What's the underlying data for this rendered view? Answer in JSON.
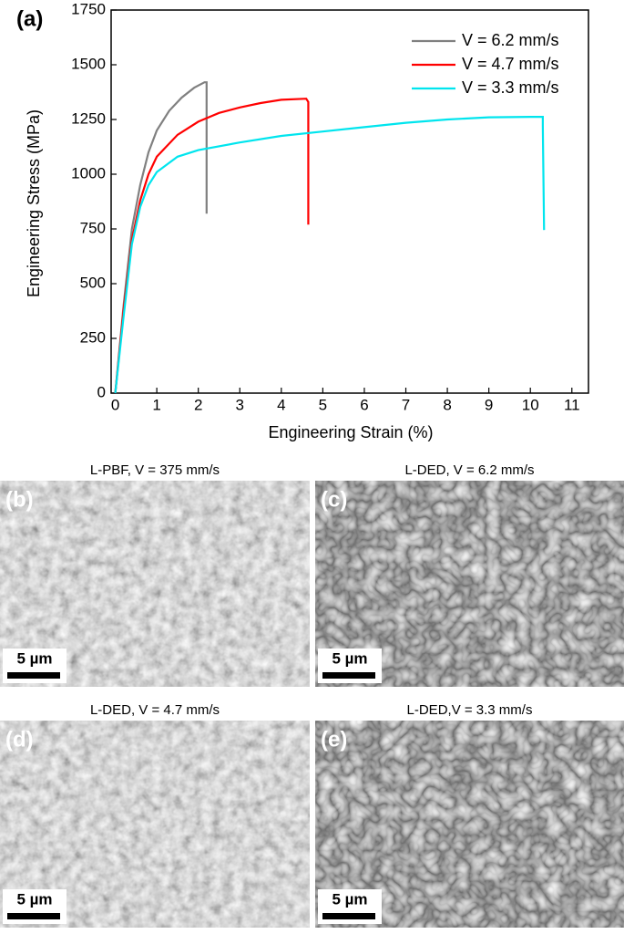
{
  "chart_data": {
    "type": "line",
    "label": "(a)",
    "x_label": "Engineering Strain (%)",
    "y_label": "Engineering Stress (MPa)",
    "xlim": [
      -0.1,
      11.4
    ],
    "ylim": [
      0,
      1750
    ],
    "xticks": [
      0,
      1,
      2,
      3,
      4,
      5,
      6,
      7,
      8,
      9,
      10,
      11
    ],
    "yticks": [
      0,
      250,
      500,
      750,
      1000,
      1250,
      1500,
      1750
    ],
    "legend": "upper right",
    "series": [
      {
        "name": "V = 6.2 mm/s",
        "color": "#808080",
        "x": [
          0,
          0.2,
          0.4,
          0.6,
          0.8,
          1.0,
          1.3,
          1.6,
          1.9,
          2.15,
          2.2,
          2.2
        ],
        "values": [
          0,
          400,
          750,
          950,
          1100,
          1200,
          1290,
          1350,
          1395,
          1420,
          1420,
          820
        ]
      },
      {
        "name": "V = 4.7 mm/s",
        "color": "#ff0000",
        "x": [
          0,
          0.2,
          0.4,
          0.6,
          0.8,
          1.0,
          1.5,
          2.0,
          2.5,
          3.0,
          3.5,
          4.0,
          4.6,
          4.65,
          4.65
        ],
        "values": [
          0,
          380,
          700,
          880,
          1000,
          1080,
          1180,
          1240,
          1280,
          1305,
          1325,
          1340,
          1345,
          1330,
          770
        ]
      },
      {
        "name": "V = 3.3 mm/s",
        "color": "#00e5ee",
        "x": [
          0,
          0.2,
          0.4,
          0.6,
          0.8,
          1.0,
          1.5,
          2.0,
          3.0,
          4.0,
          5.0,
          6.0,
          7.0,
          8.0,
          9.0,
          10.0,
          10.3,
          10.3,
          10.33
        ],
        "values": [
          0,
          350,
          680,
          850,
          950,
          1010,
          1080,
          1110,
          1145,
          1175,
          1195,
          1215,
          1235,
          1250,
          1260,
          1262,
          1262,
          1220,
          745
        ]
      }
    ]
  },
  "panels": [
    {
      "label": "(b)",
      "caption": "L-PBF, V = 375 mm/s",
      "scale_bar": "5 µm"
    },
    {
      "label": "(c)",
      "caption": "L-DED, V = 6.2 mm/s",
      "scale_bar": "5 µm"
    },
    {
      "label": "(d)",
      "caption": "L-DED, V = 4.7 mm/s",
      "scale_bar": "5 µm"
    },
    {
      "label": "(e)",
      "caption": "L-DED,V = 3.3 mm/s",
      "scale_bar": "5 µm"
    }
  ]
}
